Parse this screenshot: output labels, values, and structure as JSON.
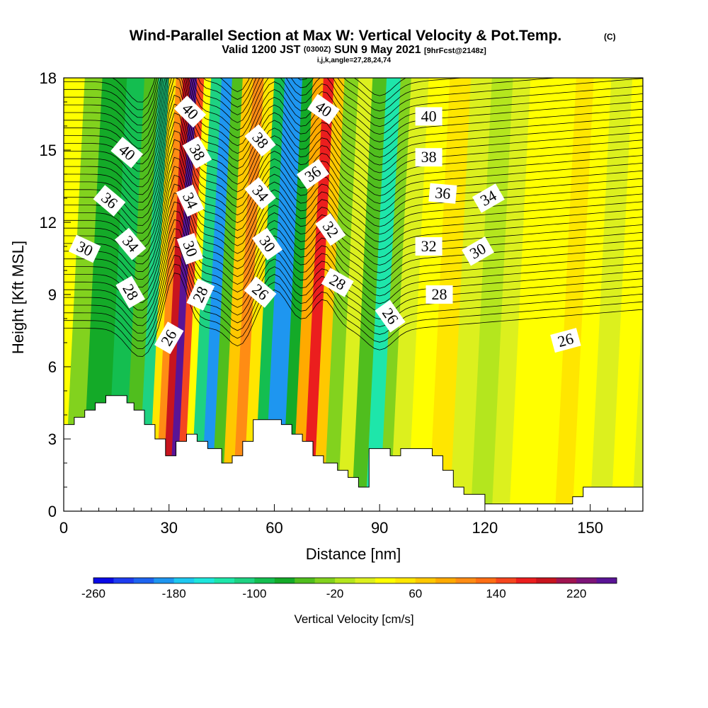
{
  "title": {
    "main": "Wind-Parallel Section at Max W: Vertical Velocity & Pot.Temp.",
    "copyright": "(C)",
    "valid_prefix": "Valid 1200 JST",
    "valid_zulu": "(0300Z)",
    "valid_date": "SUN 9 May 2021",
    "forecast": "[9hrFcst@2148z]",
    "indices": "i,j,k,angle=27,28,24,74"
  },
  "chart_data": {
    "type": "heatmap",
    "xlabel": "Distance [nm]",
    "ylabel": "Height [Kft MSL]",
    "xlim": [
      0,
      165
    ],
    "ylim": [
      0,
      18
    ],
    "xticks": [
      0,
      30,
      60,
      90,
      120,
      150
    ],
    "yticks": [
      0,
      3,
      6,
      9,
      12,
      15,
      18
    ],
    "colorbar": {
      "label": "Vertical Velocity [cm/s]",
      "tick_values": [
        -260,
        -180,
        -100,
        -20,
        60,
        140,
        220
      ],
      "tick_labels": [
        "-260",
        "-180",
        "-100",
        "-20",
        "60",
        "140",
        "220"
      ],
      "min": -260,
      "max": 260,
      "step": 20,
      "colors": [
        "#0a0ae6",
        "#1e3cf0",
        "#1e64f0",
        "#1e96f0",
        "#1ec8f0",
        "#1ee6dc",
        "#1ee6aa",
        "#1ed282",
        "#14be50",
        "#14aa28",
        "#50be1e",
        "#82d21e",
        "#b4e61e",
        "#dcf01e",
        "#ffff00",
        "#ffe600",
        "#ffc800",
        "#ffaa00",
        "#ff8c14",
        "#ff6e14",
        "#f5461e",
        "#eb1e1e",
        "#c8141e",
        "#a01450",
        "#7d1478",
        "#5a1496"
      ]
    },
    "velocity_cells": [
      {
        "x_range": [
          0,
          5
        ],
        "value": -30
      },
      {
        "x_range": [
          5,
          12
        ],
        "value": -70
      },
      {
        "x_range": [
          12,
          17
        ],
        "value": -90
      },
      {
        "x_range": [
          17,
          21
        ],
        "value": -60
      },
      {
        "x_range": [
          21,
          24
        ],
        "value": -110
      },
      {
        "x_range": [
          24,
          26
        ],
        "value": 40
      },
      {
        "x_range": [
          26,
          28
        ],
        "value": 110
      },
      {
        "x_range": [
          28,
          30
        ],
        "value": 180
      },
      {
        "x_range": [
          30,
          32
        ],
        "value": 240
      },
      {
        "x_range": [
          32,
          34
        ],
        "value": 150
      },
      {
        "x_range": [
          34,
          36
        ],
        "value": 30
      },
      {
        "x_range": [
          36,
          39
        ],
        "value": -120
      },
      {
        "x_range": [
          39,
          42
        ],
        "value": -190
      },
      {
        "x_range": [
          42,
          45
        ],
        "value": -60
      },
      {
        "x_range": [
          45,
          48
        ],
        "value": 60
      },
      {
        "x_range": [
          48,
          51
        ],
        "value": 110
      },
      {
        "x_range": [
          51,
          54
        ],
        "value": 40
      },
      {
        "x_range": [
          54,
          57
        ],
        "value": -90
      },
      {
        "x_range": [
          57,
          62
        ],
        "value": -200
      },
      {
        "x_range": [
          62,
          65
        ],
        "value": -70
      },
      {
        "x_range": [
          65,
          68
        ],
        "value": 90
      },
      {
        "x_range": [
          68,
          71
        ],
        "value": 170
      },
      {
        "x_range": [
          71,
          74
        ],
        "value": 60
      },
      {
        "x_range": [
          74,
          78
        ],
        "value": -40
      },
      {
        "x_range": [
          78,
          82
        ],
        "value": 0
      },
      {
        "x_range": [
          82,
          86
        ],
        "value": -60
      },
      {
        "x_range": [
          86,
          90
        ],
        "value": -140
      },
      {
        "x_range": [
          90,
          93
        ],
        "value": -40
      },
      {
        "x_range": [
          93,
          98
        ],
        "value": 0
      },
      {
        "x_range": [
          98,
          104
        ],
        "value": 30
      },
      {
        "x_range": [
          104,
          110
        ],
        "value": 50
      },
      {
        "x_range": [
          110,
          116
        ],
        "value": 10
      },
      {
        "x_range": [
          116,
          122
        ],
        "value": -20
      },
      {
        "x_range": [
          122,
          127
        ],
        "value": 0
      },
      {
        "x_range": [
          127,
          133
        ],
        "value": 20
      },
      {
        "x_range": [
          133,
          140
        ],
        "value": 30
      },
      {
        "x_range": [
          140,
          145
        ],
        "value": 50
      },
      {
        "x_range": [
          145,
          150
        ],
        "value": 30
      },
      {
        "x_range": [
          150,
          156
        ],
        "value": 10
      },
      {
        "x_range": [
          156,
          162
        ],
        "value": 20
      },
      {
        "x_range": [
          162,
          165
        ],
        "value": 0
      }
    ],
    "terrain": [
      [
        0,
        3.6
      ],
      [
        3,
        3.6
      ],
      [
        3,
        3.9
      ],
      [
        6,
        3.9
      ],
      [
        6,
        4.2
      ],
      [
        9,
        4.2
      ],
      [
        9,
        4.5
      ],
      [
        12,
        4.5
      ],
      [
        12,
        4.8
      ],
      [
        18,
        4.8
      ],
      [
        18,
        4.5
      ],
      [
        20,
        4.5
      ],
      [
        20,
        4.2
      ],
      [
        23,
        4.2
      ],
      [
        23,
        3.6
      ],
      [
        26,
        3.6
      ],
      [
        26,
        3.0
      ],
      [
        29,
        3.0
      ],
      [
        29,
        2.3
      ],
      [
        32,
        2.3
      ],
      [
        32,
        2.9
      ],
      [
        35,
        2.9
      ],
      [
        35,
        3.2
      ],
      [
        38,
        3.2
      ],
      [
        38,
        2.9
      ],
      [
        41,
        2.9
      ],
      [
        41,
        2.6
      ],
      [
        45,
        2.6
      ],
      [
        45,
        2.0
      ],
      [
        48,
        2.0
      ],
      [
        48,
        2.3
      ],
      [
        51,
        2.3
      ],
      [
        51,
        2.9
      ],
      [
        54,
        2.9
      ],
      [
        54,
        3.8
      ],
      [
        62,
        3.8
      ],
      [
        62,
        3.6
      ],
      [
        65,
        3.6
      ],
      [
        65,
        3.2
      ],
      [
        68,
        3.2
      ],
      [
        68,
        2.9
      ],
      [
        71,
        2.9
      ],
      [
        71,
        2.3
      ],
      [
        74,
        2.3
      ],
      [
        74,
        2.0
      ],
      [
        78,
        2.0
      ],
      [
        78,
        1.7
      ],
      [
        81,
        1.7
      ],
      [
        81,
        1.4
      ],
      [
        84,
        1.4
      ],
      [
        84,
        1.0
      ],
      [
        87,
        1.0
      ],
      [
        87,
        2.6
      ],
      [
        93,
        2.6
      ],
      [
        93,
        2.3
      ],
      [
        96,
        2.3
      ],
      [
        96,
        2.6
      ],
      [
        105,
        2.6
      ],
      [
        105,
        2.3
      ],
      [
        108,
        2.3
      ],
      [
        108,
        1.7
      ],
      [
        111,
        1.7
      ],
      [
        111,
        1.0
      ],
      [
        114,
        1.0
      ],
      [
        114,
        0.7
      ],
      [
        120,
        0.7
      ],
      [
        120,
        0.3
      ],
      [
        145,
        0.3
      ],
      [
        145,
        0.6
      ],
      [
        148,
        0.6
      ],
      [
        148,
        1.0
      ],
      [
        165,
        1.0
      ]
    ],
    "theta_contour_labels": [
      {
        "text": "40",
        "x": 36,
        "y": 16.6,
        "angle": 45
      },
      {
        "text": "38",
        "x": 38,
        "y": 14.9,
        "angle": 60
      },
      {
        "text": "34",
        "x": 36,
        "y": 12.9,
        "angle": 65
      },
      {
        "text": "30",
        "x": 36,
        "y": 10.9,
        "angle": 70
      },
      {
        "text": "28",
        "x": 39,
        "y": 9.0,
        "angle": -65
      },
      {
        "text": "26",
        "x": 30,
        "y": 7.2,
        "angle": -60
      },
      {
        "text": "40",
        "x": 18,
        "y": 14.9,
        "angle": 40
      },
      {
        "text": "36",
        "x": 13,
        "y": 12.9,
        "angle": 40
      },
      {
        "text": "34",
        "x": 19,
        "y": 11.1,
        "angle": 50
      },
      {
        "text": "30",
        "x": 6,
        "y": 10.9,
        "angle": 25
      },
      {
        "text": "28",
        "x": 19,
        "y": 9.1,
        "angle": 60
      },
      {
        "text": "38",
        "x": 56,
        "y": 15.4,
        "angle": 50
      },
      {
        "text": "34",
        "x": 56,
        "y": 13.2,
        "angle": 50
      },
      {
        "text": "30",
        "x": 58,
        "y": 11.1,
        "angle": 55
      },
      {
        "text": "26",
        "x": 56,
        "y": 9.1,
        "angle": 40
      },
      {
        "text": "40",
        "x": 74,
        "y": 16.7,
        "angle": 35
      },
      {
        "text": "36",
        "x": 71,
        "y": 14.0,
        "angle": -35
      },
      {
        "text": "32",
        "x": 76,
        "y": 11.7,
        "angle": 55
      },
      {
        "text": "28",
        "x": 78,
        "y": 9.5,
        "angle": 30
      },
      {
        "text": "26",
        "x": 93,
        "y": 8.1,
        "angle": 55
      },
      {
        "text": "40",
        "x": 104,
        "y": 16.4,
        "angle": 0
      },
      {
        "text": "38",
        "x": 104,
        "y": 14.7,
        "angle": 0
      },
      {
        "text": "36",
        "x": 108,
        "y": 13.2,
        "angle": 5
      },
      {
        "text": "34",
        "x": 121,
        "y": 13.0,
        "angle": -30
      },
      {
        "text": "32",
        "x": 104,
        "y": 11.0,
        "angle": 0
      },
      {
        "text": "30",
        "x": 118,
        "y": 10.8,
        "angle": -30
      },
      {
        "text": "28",
        "x": 107,
        "y": 9.0,
        "angle": 0
      },
      {
        "text": "26",
        "x": 143,
        "y": 7.1,
        "angle": -15
      }
    ]
  }
}
